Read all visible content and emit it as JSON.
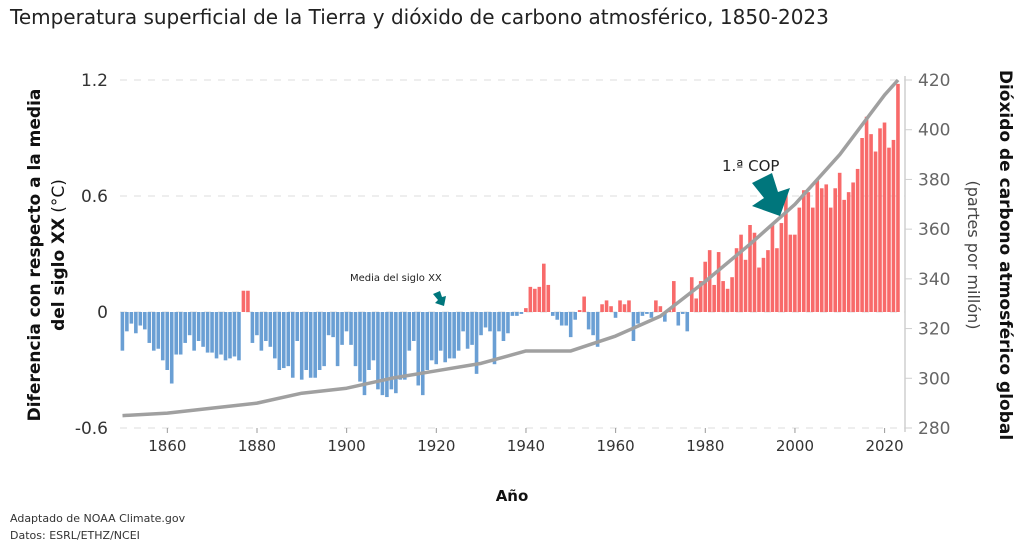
{
  "chart_data": {
    "type": "bar+line",
    "title": "Temperatura superficial de la Tierra y dióxido de carbono atmosférico, 1850-2023",
    "xlabel": "Año",
    "ylabel_left": "Diferencia con respecto a la media",
    "ylabel_left_2": "del siglo XX",
    "ylabel_left_unit": "(°C)",
    "ylabel_right": "Dióxido de carbono atmosférico global",
    "ylabel_right_unit": "(partes por millón)",
    "ylim_left": [
      -0.6,
      1.2
    ],
    "ylim_right": [
      280,
      420
    ],
    "yticks_left": [
      "-0.6",
      "0",
      "0.6",
      "1.2"
    ],
    "yticks_right": [
      "280",
      "300",
      "320",
      "340",
      "360",
      "380",
      "400",
      "420"
    ],
    "xticks": [
      "1860",
      "1880",
      "1900",
      "1920",
      "1940",
      "1960",
      "1980",
      "2000",
      "2020"
    ],
    "grid": true,
    "colors": {
      "positive": "#f86a6a",
      "negative": "#6a9fd4",
      "co2": "#a0a0a0",
      "arrow": "#00767c"
    },
    "temperature_anomaly": {
      "start_year": 1850,
      "values": [
        -0.2,
        -0.1,
        -0.06,
        -0.11,
        -0.07,
        -0.09,
        -0.16,
        -0.2,
        -0.19,
        -0.25,
        -0.3,
        -0.37,
        -0.22,
        -0.22,
        -0.16,
        -0.12,
        -0.2,
        -0.15,
        -0.18,
        -0.21,
        -0.21,
        -0.24,
        -0.22,
        -0.25,
        -0.24,
        -0.23,
        -0.25,
        0.11,
        0.11,
        -0.16,
        -0.12,
        -0.2,
        -0.15,
        -0.18,
        -0.24,
        -0.3,
        -0.29,
        -0.28,
        -0.34,
        -0.15,
        -0.35,
        -0.3,
        -0.34,
        -0.34,
        -0.3,
        -0.28,
        -0.12,
        -0.13,
        -0.28,
        -0.17,
        -0.1,
        -0.17,
        -0.28,
        -0.36,
        -0.43,
        -0.3,
        -0.25,
        -0.4,
        -0.43,
        -0.44,
        -0.4,
        -0.42,
        -0.35,
        -0.35,
        -0.2,
        -0.15,
        -0.38,
        -0.43,
        -0.3,
        -0.25,
        -0.27,
        -0.2,
        -0.26,
        -0.24,
        -0.24,
        -0.2,
        -0.1,
        -0.19,
        -0.17,
        -0.32,
        -0.12,
        -0.08,
        -0.1,
        -0.27,
        -0.1,
        -0.15,
        -0.11,
        -0.02,
        -0.02,
        -0.01,
        0.02,
        0.13,
        0.12,
        0.13,
        0.25,
        0.14,
        -0.02,
        -0.04,
        -0.07,
        -0.07,
        -0.13,
        -0.04,
        0.01,
        0.08,
        -0.09,
        -0.12,
        -0.18,
        0.04,
        0.06,
        0.03,
        -0.03,
        0.06,
        0.04,
        0.06,
        -0.15,
        -0.06,
        -0.02,
        -0.01,
        -0.03,
        0.06,
        0.03,
        -0.05,
        0.01,
        0.16,
        -0.07,
        -0.01,
        -0.1,
        0.18,
        0.07,
        0.16,
        0.26,
        0.32,
        0.14,
        0.31,
        0.16,
        0.12,
        0.18,
        0.33,
        0.4,
        0.27,
        0.45,
        0.41,
        0.23,
        0.28,
        0.32,
        0.45,
        0.33,
        0.46,
        0.61,
        0.4,
        0.4,
        0.54,
        0.63,
        0.62,
        0.54,
        0.68,
        0.64,
        0.66,
        0.54,
        0.64,
        0.72,
        0.58,
        0.62,
        0.67,
        0.74,
        0.9,
        1.01,
        0.92,
        0.83,
        0.95,
        0.98,
        0.85,
        0.89,
        1.18
      ]
    },
    "co2_ppm": {
      "x": [
        1850,
        1860,
        1870,
        1880,
        1890,
        1900,
        1910,
        1920,
        1930,
        1940,
        1950,
        1960,
        1970,
        1980,
        1990,
        2000,
        2010,
        2020,
        2023
      ],
      "y": [
        285,
        286,
        288,
        290,
        294,
        296,
        300,
        303,
        306,
        311,
        311,
        317,
        325,
        339,
        354,
        370,
        390,
        414,
        420
      ]
    },
    "annotations": [
      {
        "text": "1.ª COP",
        "year": 1995
      },
      {
        "text": "Media del siglo XX",
        "year": 1921
      }
    ]
  },
  "footer": {
    "line1": "Adaptado de NOAA Climate.gov",
    "line2": "Datos: ESRL/ETHZ/NCEI"
  }
}
